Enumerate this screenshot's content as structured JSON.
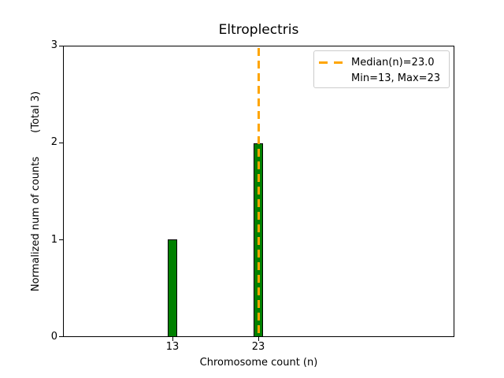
{
  "title": "Eltroplectris",
  "axes": {
    "xlabel": "Chromosome count (n)",
    "ylabel_main": "Normalized num of counts",
    "ylabel_total": "(Total 3)",
    "yticks": [
      "0",
      "1",
      "2",
      "3"
    ],
    "xticks": [
      "13",
      "23"
    ]
  },
  "legend": {
    "line1": "Median(n)=23.0",
    "line2": "Min=13, Max=23"
  },
  "colors": {
    "bar_fill": "#008000",
    "bar_edge": "#000000",
    "median_line": "#FFA500",
    "legend_border": "#cccccc",
    "background": "#ffffff"
  },
  "chart_data": {
    "type": "bar",
    "title": "Eltroplectris",
    "xlabel": "Chromosome count (n)",
    "ylabel": "Normalized num of counts    (Total 3)",
    "categories": [
      13,
      23
    ],
    "values": [
      1,
      2
    ],
    "total_counts": 3,
    "median_n": 23.0,
    "min_n": 13,
    "max_n": 23,
    "ylim": [
      0,
      3
    ],
    "yticks": [
      0,
      1,
      2,
      3
    ],
    "grid": false,
    "legend_entries": [
      "Median(n)=23.0",
      "Min=13, Max=23"
    ],
    "legend_position": "upper right",
    "bar_color": "green",
    "median_line_style": "dashed",
    "median_line_color": "orange"
  }
}
